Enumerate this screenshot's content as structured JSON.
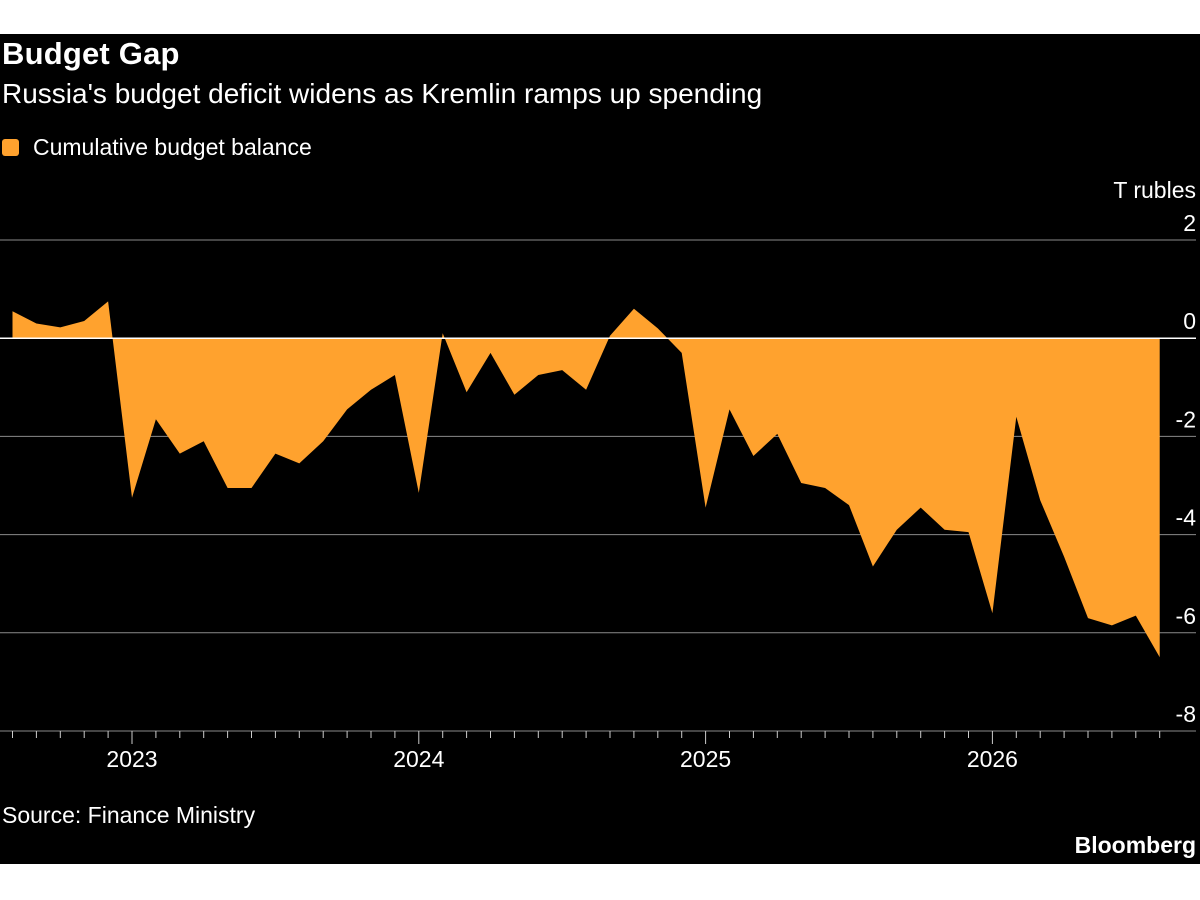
{
  "header": {
    "title": "Budget Gap",
    "subtitle": "Russia's budget deficit widens as Kremlin ramps up spending"
  },
  "legend": {
    "label": "Cumulative budget balance"
  },
  "footer": {
    "source": "Source: Finance Ministry",
    "brand": "Bloomberg"
  },
  "colors": {
    "area": "#ffa22e",
    "background": "#000000",
    "grid": "#8a8a8a",
    "text": "#ffffff"
  },
  "chart_data": {
    "type": "area",
    "ylabel": "T rubles",
    "ylim": [
      -8,
      2
    ],
    "yticks": [
      2,
      0,
      -2,
      -4,
      -6,
      -8
    ],
    "xticks": [
      {
        "label": "2023",
        "x": "2023-01"
      },
      {
        "label": "2024",
        "x": "2024-01"
      },
      {
        "label": "2025",
        "x": "2025-01"
      },
      {
        "label": "2026",
        "x": "2026-01"
      }
    ],
    "grid": true,
    "legend_position": "top-left",
    "series": [
      {
        "name": "Cumulative budget balance",
        "x": [
          "2022-08",
          "2022-09",
          "2022-10",
          "2022-11",
          "2022-12",
          "2023-01",
          "2023-02",
          "2023-03",
          "2023-04",
          "2023-05",
          "2023-06",
          "2023-07",
          "2023-08",
          "2023-09",
          "2023-10",
          "2023-11",
          "2023-12",
          "2024-01",
          "2024-02",
          "2024-03",
          "2024-04",
          "2024-05",
          "2024-06",
          "2024-07",
          "2024-08",
          "2024-09",
          "2024-10",
          "2024-11",
          "2024-12",
          "2025-01",
          "2025-02",
          "2025-03",
          "2025-04",
          "2025-05",
          "2025-06",
          "2025-07",
          "2025-08",
          "2025-09",
          "2025-10",
          "2025-11",
          "2025-12",
          "2026-01",
          "2026-02",
          "2026-03",
          "2026-04",
          "2026-05",
          "2026-06",
          "2026-07",
          "2026-08"
        ],
        "values": [
          0.55,
          0.3,
          0.22,
          0.35,
          0.75,
          -3.25,
          -1.65,
          -2.35,
          -2.1,
          -3.05,
          -3.05,
          -2.35,
          -2.55,
          -2.1,
          -1.45,
          -1.05,
          -0.75,
          -3.15,
          0.1,
          -1.1,
          -0.3,
          -1.15,
          -0.75,
          -0.65,
          -1.05,
          0.05,
          0.6,
          0.2,
          -0.3,
          -3.45,
          -1.45,
          -2.4,
          -1.95,
          -2.95,
          -3.05,
          -3.4,
          -4.65,
          -3.9,
          -3.45,
          -3.9,
          -3.95,
          -5.6,
          -1.6,
          -3.3,
          -4.45,
          -5.7,
          -5.85,
          -5.65,
          -6.5
        ]
      }
    ]
  }
}
